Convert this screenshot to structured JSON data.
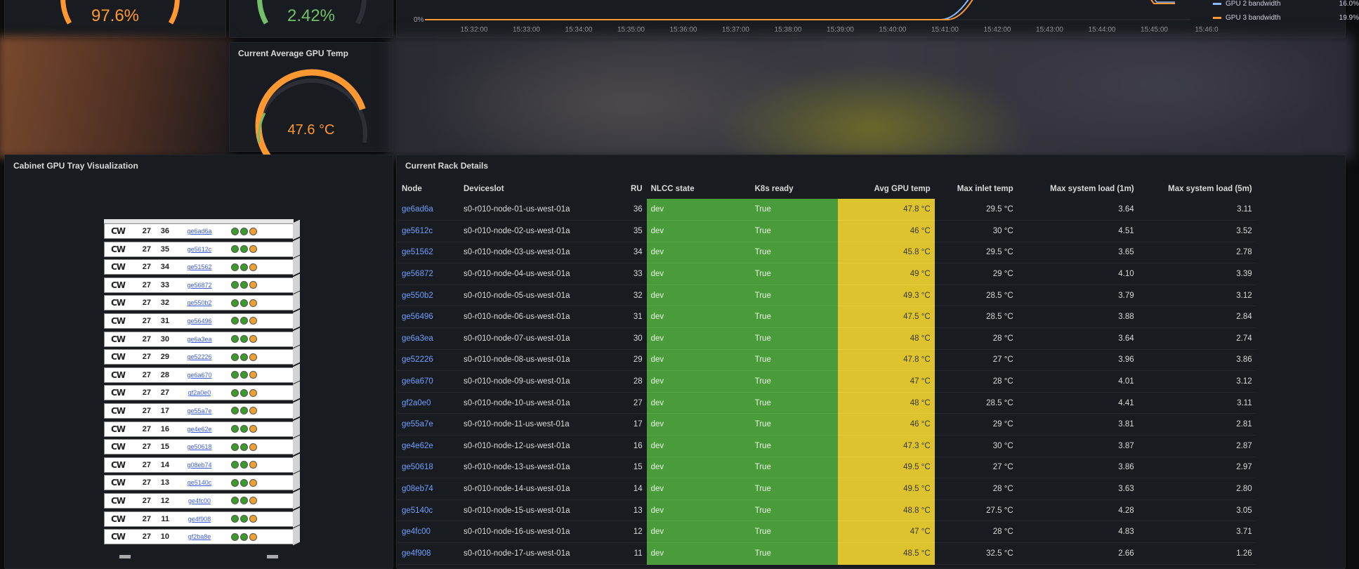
{
  "gauges": {
    "top_left_value": "97.6%",
    "top_mid_value": "2.42%",
    "avg_temp_title": "Current Average GPU Temp",
    "avg_temp_value": "47.6 °C",
    "avg_temp_fraction": 0.75
  },
  "timeseries": {
    "y_tick": "0%",
    "x_ticks": [
      "15:32:00",
      "15:33:00",
      "15:34:00",
      "15:35:00",
      "15:36:00",
      "15:37:00",
      "15:38:00",
      "15:39:00",
      "15:40:00",
      "15:41:00",
      "15:42:00",
      "15:43:00",
      "15:44:00",
      "15:45:00",
      "15:46:0"
    ],
    "legend": [
      {
        "name": "GPU 2 bandwidth",
        "value": "16.0%",
        "color": "#8ab8ff"
      },
      {
        "name": "GPU 3 bandwidth",
        "value": "19.9%",
        "color": "#ff9830"
      }
    ]
  },
  "rack_panel": {
    "title": "Cabinet GPU Tray Visualization",
    "units": [
      {
        "a": "27",
        "b": "36",
        "node": "ge6ad6a"
      },
      {
        "a": "27",
        "b": "35",
        "node": "ge5612c"
      },
      {
        "a": "27",
        "b": "34",
        "node": "ge51562"
      },
      {
        "a": "27",
        "b": "33",
        "node": "ge56872"
      },
      {
        "a": "27",
        "b": "32",
        "node": "ge550b2"
      },
      {
        "a": "27",
        "b": "31",
        "node": "ge56496"
      },
      {
        "a": "27",
        "b": "30",
        "node": "ge6a3ea"
      },
      {
        "a": "27",
        "b": "29",
        "node": "ge52226"
      },
      {
        "a": "27",
        "b": "28",
        "node": "ge6a670"
      },
      {
        "a": "27",
        "b": "27",
        "node": "gf2a0e0"
      },
      {
        "a": "27",
        "b": "17",
        "node": "ge55a7e"
      },
      {
        "a": "27",
        "b": "16",
        "node": "ge4e62e"
      },
      {
        "a": "27",
        "b": "15",
        "node": "ge50618"
      },
      {
        "a": "27",
        "b": "14",
        "node": "g08eb74"
      },
      {
        "a": "27",
        "b": "13",
        "node": "ge5140c"
      },
      {
        "a": "27",
        "b": "12",
        "node": "ge4fc00"
      },
      {
        "a": "27",
        "b": "11",
        "node": "ge4f908"
      },
      {
        "a": "27",
        "b": "10",
        "node": "gf2ba8e"
      }
    ]
  },
  "rack_details": {
    "title": "Current Rack Details",
    "columns": [
      "Node",
      "Deviceslot",
      "RU",
      "NLCC state",
      "K8s ready",
      "Avg GPU temp",
      "Max inlet temp",
      "Max system load (1m)",
      "Max system load (5m)"
    ],
    "rows": [
      [
        "ge6ad6a",
        "s0-r010-node-01-us-west-01a",
        "36",
        "dev",
        "True",
        "47.8 °C",
        "29.5 °C",
        "3.64",
        "3.11"
      ],
      [
        "ge5612c",
        "s0-r010-node-02-us-west-01a",
        "35",
        "dev",
        "True",
        "46 °C",
        "30 °C",
        "4.51",
        "3.52"
      ],
      [
        "ge51562",
        "s0-r010-node-03-us-west-01a",
        "34",
        "dev",
        "True",
        "45.8 °C",
        "29.5 °C",
        "3.65",
        "2.78"
      ],
      [
        "ge56872",
        "s0-r010-node-04-us-west-01a",
        "33",
        "dev",
        "True",
        "49 °C",
        "29 °C",
        "4.10",
        "3.39"
      ],
      [
        "ge550b2",
        "s0-r010-node-05-us-west-01a",
        "32",
        "dev",
        "True",
        "49.3 °C",
        "28.5 °C",
        "3.79",
        "3.12"
      ],
      [
        "ge56496",
        "s0-r010-node-06-us-west-01a",
        "31",
        "dev",
        "True",
        "47.5 °C",
        "28.5 °C",
        "3.88",
        "2.84"
      ],
      [
        "ge6a3ea",
        "s0-r010-node-07-us-west-01a",
        "30",
        "dev",
        "True",
        "48 °C",
        "28 °C",
        "3.64",
        "2.74"
      ],
      [
        "ge52226",
        "s0-r010-node-08-us-west-01a",
        "29",
        "dev",
        "True",
        "47.8 °C",
        "27 °C",
        "3.96",
        "3.86"
      ],
      [
        "ge6a670",
        "s0-r010-node-09-us-west-01a",
        "28",
        "dev",
        "True",
        "47 °C",
        "28 °C",
        "4.01",
        "3.12"
      ],
      [
        "gf2a0e0",
        "s0-r010-node-10-us-west-01a",
        "27",
        "dev",
        "True",
        "48 °C",
        "28.5 °C",
        "4.41",
        "3.11"
      ],
      [
        "ge55a7e",
        "s0-r010-node-11-us-west-01a",
        "17",
        "dev",
        "True",
        "46 °C",
        "29 °C",
        "3.81",
        "2.81"
      ],
      [
        "ge4e62e",
        "s0-r010-node-12-us-west-01a",
        "16",
        "dev",
        "True",
        "47.3 °C",
        "30 °C",
        "3.87",
        "2.87"
      ],
      [
        "ge50618",
        "s0-r010-node-13-us-west-01a",
        "15",
        "dev",
        "True",
        "49.5 °C",
        "27 °C",
        "3.86",
        "2.97"
      ],
      [
        "g08eb74",
        "s0-r010-node-14-us-west-01a",
        "14",
        "dev",
        "True",
        "49.5 °C",
        "28 °C",
        "3.63",
        "2.80"
      ],
      [
        "ge5140c",
        "s0-r010-node-15-us-west-01a",
        "13",
        "dev",
        "True",
        "48.8 °C",
        "27.5 °C",
        "4.28",
        "3.05"
      ],
      [
        "ge4fc00",
        "s0-r010-node-16-us-west-01a",
        "12",
        "dev",
        "True",
        "47 °C",
        "28 °C",
        "4.83",
        "3.71"
      ],
      [
        "ge4f908",
        "s0-r010-node-17-us-west-01a",
        "11",
        "dev",
        "True",
        "48.5 °C",
        "32.5 °C",
        "2.66",
        "1.26"
      ]
    ]
  }
}
